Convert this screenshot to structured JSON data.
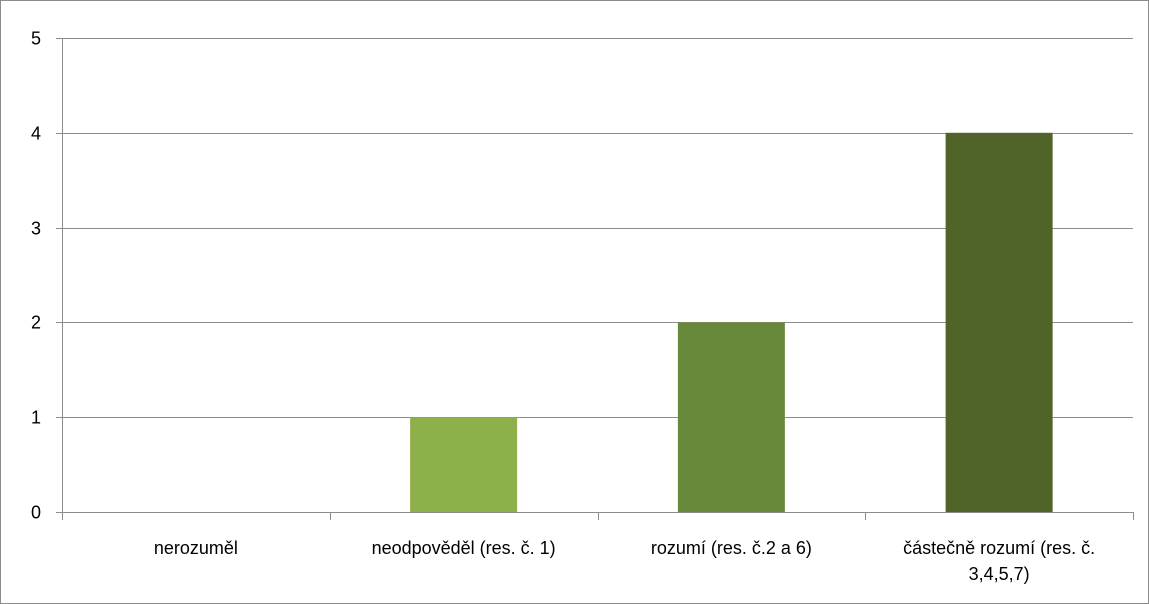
{
  "chart_data": {
    "type": "bar",
    "title": "",
    "xlabel": "",
    "ylabel": "",
    "categories": [
      [
        "nerozuměl"
      ],
      [
        "neodpověděl (res. č. 1)"
      ],
      [
        "rozumí (res. č.2 a 6)"
      ],
      [
        "částečně rozumí (res. č.",
        "3,4,5,7)"
      ]
    ],
    "values": [
      0,
      1,
      2,
      4
    ],
    "colors": [
      "#b9cf8a",
      "#8db04a",
      "#69893a",
      "#506429"
    ],
    "ylim": [
      0,
      5
    ],
    "yticks": [
      "0",
      "1",
      "2",
      "3",
      "4",
      "5"
    ],
    "grid": true,
    "legend": "none"
  }
}
